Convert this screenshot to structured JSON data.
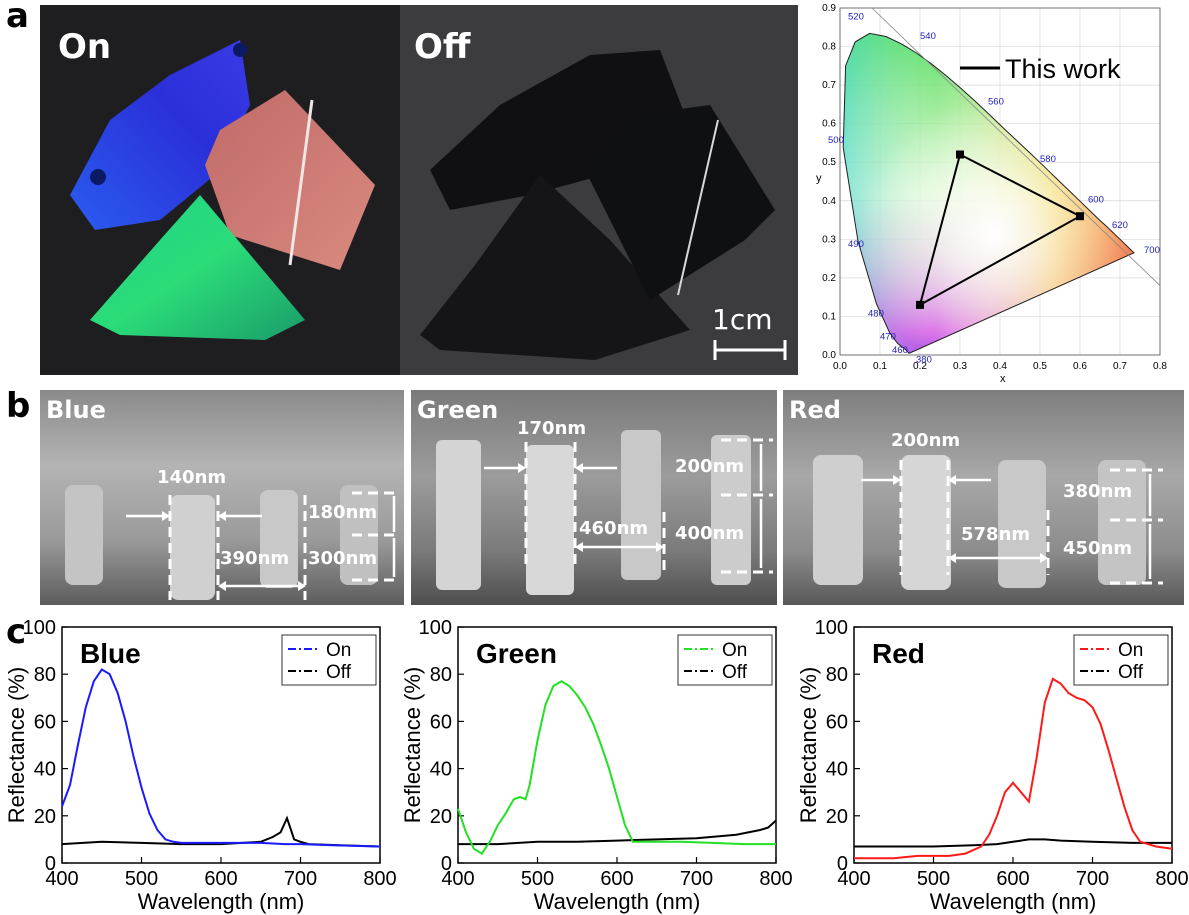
{
  "panel_letters": {
    "a": "a",
    "b": "b",
    "c": "c"
  },
  "photos": {
    "on_label": "On",
    "off_label": "Off",
    "scale_label": "1cm"
  },
  "cie": {
    "legend": "This work",
    "x_label": "x",
    "y_label": "y",
    "x_ticks": [
      "0.0",
      "0.1",
      "0.2",
      "0.3",
      "0.4",
      "0.5",
      "0.6",
      "0.7",
      "0.8"
    ],
    "y_ticks": [
      "0.0",
      "0.1",
      "0.2",
      "0.3",
      "0.4",
      "0.5",
      "0.6",
      "0.7",
      "0.8",
      "0.9"
    ],
    "wavelength_labels": [
      "380",
      "460",
      "470",
      "480",
      "490",
      "500",
      "520",
      "540",
      "560",
      "580",
      "600",
      "620",
      "700"
    ],
    "triangle_points": [
      [
        0.3,
        0.52
      ],
      [
        0.6,
        0.36
      ],
      [
        0.2,
        0.13
      ]
    ]
  },
  "sem": {
    "blue": {
      "title": "Blue",
      "width": "140nm",
      "gap": "390nm",
      "top_height": "180nm",
      "bottom_height": "300nm"
    },
    "green": {
      "title": "Green",
      "width": "170nm",
      "gap": "460nm",
      "top_height": "200nm",
      "bottom_height": "400nm"
    },
    "red": {
      "title": "Red",
      "width": "200nm",
      "gap": "578nm",
      "top_height": "380nm",
      "bottom_height": "450nm"
    }
  },
  "chart_data": [
    {
      "type": "line",
      "title": "Blue",
      "xlabel": "Wavelength (nm)",
      "ylabel": "Reflectance (%)",
      "xlim": [
        400,
        800
      ],
      "ylim": [
        0,
        100
      ],
      "x_ticks": [
        400,
        500,
        600,
        700,
        800
      ],
      "y_ticks": [
        0,
        20,
        40,
        60,
        80,
        100
      ],
      "legend_position": "top-right",
      "series": [
        {
          "name": "On",
          "color": "#1a1aff",
          "x": [
            400,
            410,
            420,
            430,
            440,
            450,
            460,
            470,
            480,
            490,
            500,
            510,
            520,
            530,
            540,
            550,
            560,
            580,
            600,
            620,
            650,
            680,
            700,
            740,
            800
          ],
          "y": [
            24,
            33,
            50,
            66,
            77,
            82,
            80,
            72,
            60,
            45,
            32,
            21,
            14,
            10,
            9,
            8.5,
            8.5,
            8.5,
            8.5,
            8.5,
            8.5,
            8,
            8,
            7.5,
            7
          ]
        },
        {
          "name": "Off",
          "color": "#000000",
          "x": [
            400,
            450,
            500,
            550,
            600,
            650,
            665,
            675,
            683,
            688,
            692,
            700,
            710,
            750,
            800
          ],
          "y": [
            8,
            9,
            8.5,
            8,
            8,
            9,
            11,
            13,
            19,
            14,
            10,
            9,
            8,
            7.5,
            7
          ]
        }
      ]
    },
    {
      "type": "line",
      "title": "Green",
      "xlabel": "Wavelength (nm)",
      "ylabel": "Reflectance (%)",
      "xlim": [
        400,
        800
      ],
      "ylim": [
        0,
        100
      ],
      "x_ticks": [
        400,
        500,
        600,
        700,
        800
      ],
      "y_ticks": [
        0,
        20,
        40,
        60,
        80,
        100
      ],
      "legend_position": "top-right",
      "series": [
        {
          "name": "On",
          "color": "#22e022",
          "x": [
            400,
            410,
            420,
            430,
            440,
            450,
            460,
            470,
            478,
            485,
            490,
            500,
            510,
            520,
            530,
            540,
            550,
            560,
            570,
            580,
            590,
            600,
            610,
            620,
            640,
            680,
            720,
            760,
            800
          ],
          "y": [
            23,
            13,
            6,
            4,
            9,
            16,
            21,
            27,
            28,
            27,
            33,
            52,
            67,
            75,
            77,
            75,
            71,
            66,
            59,
            50,
            40,
            28,
            16,
            9,
            9,
            9,
            8.5,
            8,
            8
          ]
        },
        {
          "name": "Off",
          "color": "#000000",
          "x": [
            400,
            450,
            500,
            550,
            600,
            650,
            700,
            750,
            780,
            790,
            800
          ],
          "y": [
            8,
            8,
            9,
            9,
            9.5,
            10,
            10.5,
            12,
            14,
            15,
            18
          ]
        }
      ]
    },
    {
      "type": "line",
      "title": "Red",
      "xlabel": "Wavelength (nm)",
      "ylabel": "Reflectance (%)",
      "xlim": [
        400,
        800
      ],
      "ylim": [
        0,
        100
      ],
      "x_ticks": [
        400,
        500,
        600,
        700,
        800
      ],
      "y_ticks": [
        0,
        20,
        40,
        60,
        80,
        100
      ],
      "legend_position": "top-right",
      "series": [
        {
          "name": "On",
          "color": "#ff1a1a",
          "x": [
            400,
            450,
            480,
            500,
            520,
            540,
            560,
            570,
            580,
            590,
            600,
            610,
            620,
            630,
            640,
            650,
            660,
            670,
            680,
            690,
            700,
            710,
            720,
            730,
            740,
            750,
            760,
            780,
            800
          ],
          "y": [
            2,
            2,
            3,
            3,
            3,
            4,
            7,
            12,
            20,
            30,
            34,
            30,
            26,
            45,
            68,
            78,
            76,
            72,
            70,
            69,
            66,
            59,
            48,
            36,
            24,
            14,
            9,
            7,
            6
          ]
        },
        {
          "name": "Off",
          "color": "#000000",
          "x": [
            400,
            450,
            500,
            550,
            580,
            600,
            620,
            640,
            660,
            700,
            750,
            800
          ],
          "y": [
            7,
            7,
            7,
            7.5,
            8,
            9,
            10,
            10,
            9.5,
            9,
            8.5,
            8.5
          ]
        }
      ]
    }
  ]
}
